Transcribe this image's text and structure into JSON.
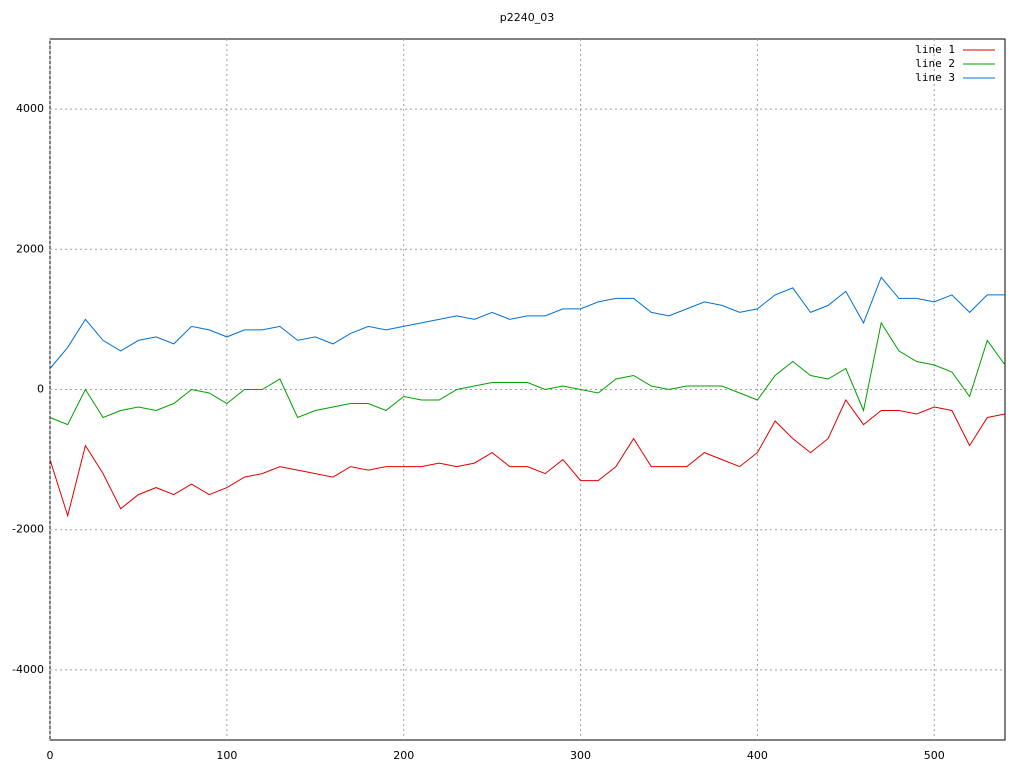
{
  "chart_data": {
    "type": "line",
    "title": "p2240_03",
    "x": [
      0,
      10,
      20,
      30,
      40,
      50,
      60,
      70,
      80,
      90,
      100,
      110,
      120,
      130,
      140,
      150,
      160,
      170,
      180,
      190,
      200,
      210,
      220,
      230,
      240,
      250,
      260,
      270,
      280,
      290,
      300,
      310,
      320,
      330,
      340,
      350,
      360,
      370,
      380,
      390,
      400,
      410,
      420,
      430,
      440,
      450,
      460,
      470,
      480,
      490,
      500,
      510,
      520,
      530,
      540
    ],
    "series": [
      {
        "name": "line 1",
        "color": "#e00000",
        "values": [
          -1000,
          -1800,
          -800,
          -1200,
          -1700,
          -1500,
          -1400,
          -1500,
          -1350,
          -1500,
          -1400,
          -1250,
          -1200,
          -1100,
          -1150,
          -1200,
          -1250,
          -1100,
          -1150,
          -1100,
          -1100,
          -1100,
          -1050,
          -1100,
          -1050,
          -900,
          -1100,
          -1100,
          -1200,
          -1000,
          -1300,
          -1300,
          -1100,
          -700,
          -1100,
          -1100,
          -1100,
          -900,
          -1000,
          -1100,
          -900,
          -450,
          -700,
          -900,
          -700,
          -150,
          -500,
          -300,
          -300,
          -350,
          -250,
          -300,
          -800,
          -400,
          -350
        ]
      },
      {
        "name": "line 2",
        "color": "#00a000",
        "values": [
          -400,
          -500,
          0,
          -400,
          -300,
          -250,
          -300,
          -200,
          0,
          -50,
          -200,
          0,
          0,
          150,
          -400,
          -300,
          -250,
          -200,
          -200,
          -300,
          -100,
          -150,
          -150,
          0,
          50,
          100,
          100,
          100,
          0,
          50,
          0,
          -50,
          150,
          200,
          50,
          0,
          50,
          50,
          50,
          -50,
          -150,
          200,
          400,
          200,
          150,
          300,
          -300,
          950,
          550,
          400,
          350,
          250,
          -100,
          700,
          350
        ]
      },
      {
        "name": "line 3",
        "color": "#0070d0",
        "values": [
          300,
          600,
          1000,
          700,
          550,
          700,
          750,
          650,
          900,
          850,
          750,
          850,
          850,
          900,
          700,
          750,
          650,
          800,
          900,
          850,
          900,
          950,
          1000,
          1050,
          1000,
          1100,
          1000,
          1050,
          1050,
          1150,
          1150,
          1250,
          1300,
          1300,
          1100,
          1050,
          1150,
          1250,
          1200,
          1100,
          1150,
          1350,
          1450,
          1100,
          1200,
          1400,
          950,
          1600,
          1300,
          1300,
          1250,
          1350,
          1100,
          1350,
          1350
        ]
      }
    ],
    "xlim": [
      0,
      540
    ],
    "ylim": [
      -5000,
      5000
    ],
    "xticks": [
      0,
      100,
      200,
      300,
      400,
      500
    ],
    "yticks": [
      -4000,
      -2000,
      0,
      2000,
      4000
    ],
    "grid": true
  }
}
